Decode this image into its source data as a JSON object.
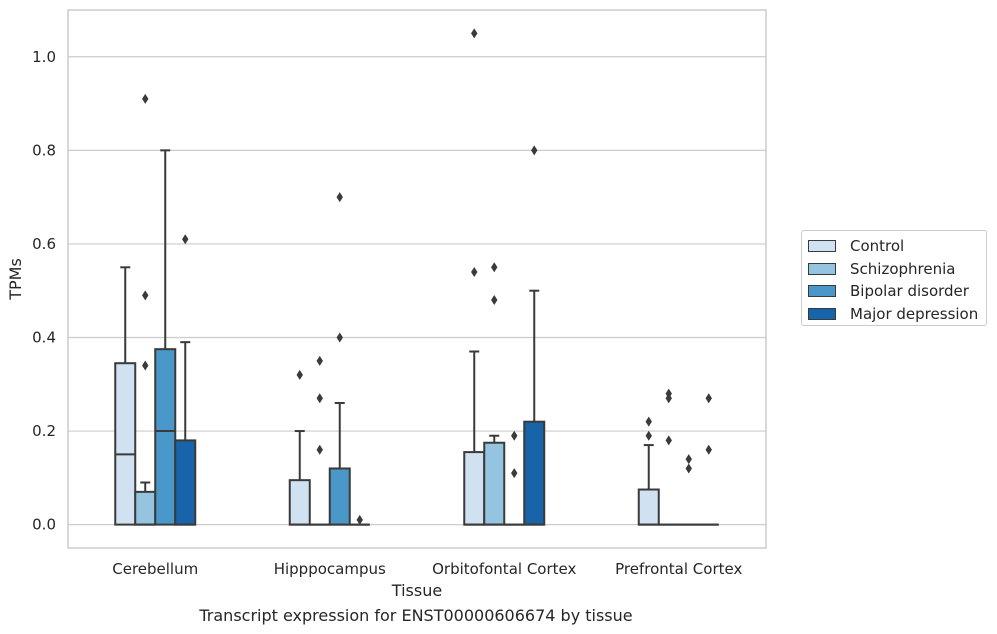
{
  "caption": "Transcript expression for ENST00000606674 by tissue",
  "chart_data": {
    "type": "box",
    "xlabel": "Tissue",
    "ylabel": "TPMs",
    "ylim": [
      -0.05,
      1.1
    ],
    "yticks": [
      0.0,
      0.2,
      0.4,
      0.6,
      0.8,
      1.0
    ],
    "ytick_labels": [
      "0.0",
      "0.2",
      "0.4",
      "0.6",
      "0.8",
      "1.0"
    ],
    "grid": "horizontal",
    "legend_position": "right",
    "categories": [
      "Cerebellum",
      "Hipppocampus",
      "Orbitofontal Cortex",
      "Prefrontal Cortex"
    ],
    "series": [
      {
        "name": "Control",
        "color": "#d0e1f2",
        "boxes": [
          {
            "q1": 0,
            "median": 0.15,
            "q3": 0.345,
            "whisker_low": 0,
            "whisker_high": 0.55,
            "outliers": []
          },
          {
            "q1": 0,
            "median": 0,
            "q3": 0.095,
            "whisker_low": 0,
            "whisker_high": 0.2,
            "outliers": [
              0.32
            ]
          },
          {
            "q1": 0,
            "median": 0,
            "q3": 0.155,
            "whisker_low": 0,
            "whisker_high": 0.37,
            "outliers": [
              0.54,
              1.05
            ]
          },
          {
            "q1": 0,
            "median": 0,
            "q3": 0.075,
            "whisker_low": 0,
            "whisker_high": 0.17,
            "outliers": [
              0.19,
              0.22
            ]
          }
        ]
      },
      {
        "name": "Schizophrenia",
        "color": "#94c4df",
        "boxes": [
          {
            "q1": 0,
            "median": 0,
            "q3": 0.07,
            "whisker_low": 0,
            "whisker_high": 0.09,
            "outliers": [
              0.34,
              0.49,
              0.91
            ]
          },
          {
            "q1": 0,
            "median": 0,
            "q3": 0,
            "whisker_low": 0,
            "whisker_high": 0,
            "outliers": [
              0.16,
              0.27,
              0.35
            ]
          },
          {
            "q1": 0,
            "median": 0,
            "q3": 0.175,
            "whisker_low": 0,
            "whisker_high": 0.19,
            "outliers": [
              0.48,
              0.55
            ]
          },
          {
            "q1": 0,
            "median": 0,
            "q3": 0,
            "whisker_low": 0,
            "whisker_high": 0,
            "outliers": [
              0.18,
              0.27,
              0.28
            ]
          }
        ]
      },
      {
        "name": "Bipolar disorder",
        "color": "#4a98c9",
        "boxes": [
          {
            "q1": 0,
            "median": 0.2,
            "q3": 0.375,
            "whisker_low": 0,
            "whisker_high": 0.8,
            "outliers": []
          },
          {
            "q1": 0,
            "median": 0,
            "q3": 0.12,
            "whisker_low": 0,
            "whisker_high": 0.26,
            "outliers": [
              0.4,
              0.7
            ]
          },
          {
            "q1": 0,
            "median": 0,
            "q3": 0,
            "whisker_low": 0,
            "whisker_high": 0,
            "outliers": [
              0.11,
              0.19
            ]
          },
          {
            "q1": 0,
            "median": 0,
            "q3": 0,
            "whisker_low": 0,
            "whisker_high": 0,
            "outliers": [
              0.12,
              0.14
            ]
          }
        ]
      },
      {
        "name": "Major depression",
        "color": "#1764ab",
        "boxes": [
          {
            "q1": 0,
            "median": 0,
            "q3": 0.18,
            "whisker_low": 0,
            "whisker_high": 0.39,
            "outliers": [
              0.61
            ]
          },
          {
            "q1": 0,
            "median": 0,
            "q3": 0,
            "whisker_low": 0,
            "whisker_high": 0,
            "outliers": [
              0.01
            ]
          },
          {
            "q1": 0,
            "median": 0,
            "q3": 0.22,
            "whisker_low": 0,
            "whisker_high": 0.5,
            "outliers": [
              0.8
            ]
          },
          {
            "q1": 0,
            "median": 0,
            "q3": 0,
            "whisker_low": 0,
            "whisker_high": 0,
            "outliers": [
              0.16,
              0.27
            ]
          }
        ]
      }
    ]
  }
}
